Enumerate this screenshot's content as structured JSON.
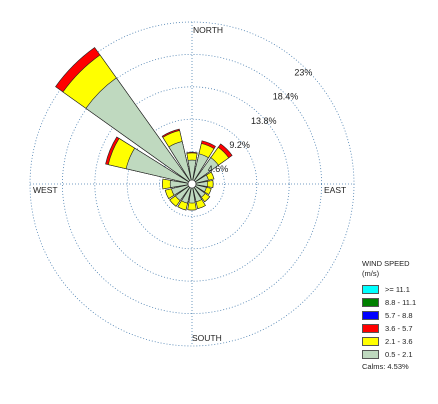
{
  "chart_data": {
    "type": "wind-rose",
    "direction_labels": {
      "north": "NORTH",
      "south": "SOUTH",
      "east": "EAST",
      "west": "WEST"
    },
    "ring_percent_labels": [
      "4.6%",
      "9.2%",
      "13.8%",
      "18.4%",
      "23%"
    ],
    "ring_percent_values": [
      4.6,
      9.2,
      13.8,
      18.4,
      23
    ],
    "sectors": 16,
    "sector_directions_deg": [
      0,
      22.5,
      45,
      67.5,
      90,
      112.5,
      135,
      157.5,
      180,
      202.5,
      225,
      247.5,
      270,
      292.5,
      315,
      337.5
    ],
    "speed_bins": [
      ">= 11.1",
      "8.8 - 11.1",
      "5.7 - 8.8",
      "3.6 - 5.7",
      "2.1 - 3.6",
      "0.5 - 2.1"
    ],
    "series": [
      {
        "bin": "0.5 - 2.1",
        "color": "#bfd9bf",
        "values": [
          3.4,
          4.4,
          4.6,
          2.4,
          2.2,
          2.1,
          2.3,
          2.6,
          2.7,
          2.8,
          2.9,
          3.0,
          3.1,
          9.6,
          18.5,
          6.2
        ]
      },
      {
        "bin": "2.1 - 3.6",
        "color": "#ffff00",
        "values": [
          1.0,
          1.5,
          1.8,
          0.8,
          0.8,
          0.7,
          0.8,
          1.0,
          1.0,
          1.0,
          1.0,
          0.9,
          1.1,
          2.6,
          4.0,
          1.6
        ]
      },
      {
        "bin": "3.6 - 5.7",
        "color": "#ff0000",
        "values": [
          0.1,
          0.4,
          0.6,
          0.0,
          0.0,
          0.0,
          0.0,
          0.0,
          0.0,
          0.0,
          0.0,
          0.0,
          0.0,
          0.4,
          1.3,
          0.2
        ]
      },
      {
        "bin": "5.7 - 8.8",
        "color": "#0000ff",
        "values": [
          0,
          0,
          0,
          0,
          0,
          0,
          0,
          0,
          0,
          0,
          0,
          0,
          0,
          0,
          0,
          0
        ]
      },
      {
        "bin": "8.8 - 11.1",
        "color": "#008000",
        "values": [
          0,
          0,
          0,
          0,
          0,
          0,
          0,
          0,
          0,
          0,
          0,
          0,
          0,
          0,
          0,
          0
        ]
      },
      {
        "bin": ">= 11.1",
        "color": "#00ffff",
        "values": [
          0,
          0,
          0,
          0,
          0,
          0,
          0,
          0,
          0,
          0,
          0,
          0,
          0,
          0,
          0,
          0
        ]
      }
    ],
    "legend": {
      "title_line1": "WIND SPEED",
      "title_line2": "(m/s)",
      "placement": "bottom-right",
      "entries": [
        {
          "label": ">= 11.1",
          "color": "#00ffff"
        },
        {
          "label": "8.8 - 11.1",
          "color": "#008000"
        },
        {
          "label": "5.7 - 8.8",
          "color": "#0000ff"
        },
        {
          "label": "3.6 - 5.7",
          "color": "#ff0000"
        },
        {
          "label": "2.1 - 3.6",
          "color": "#ffff00"
        },
        {
          "label": "0.5 - 2.1",
          "color": "#bfd9bf"
        }
      ],
      "calms": "Calms: 4.53%"
    }
  }
}
